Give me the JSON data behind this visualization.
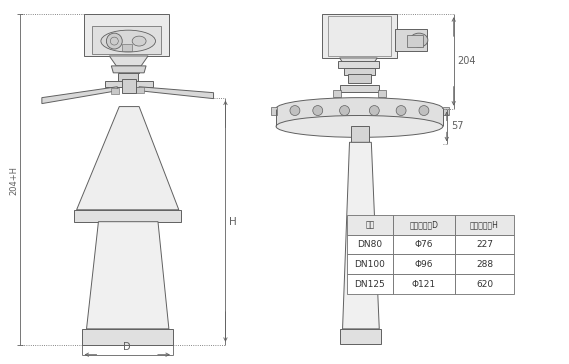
{
  "bg_color": "#ffffff",
  "lc": "#909090",
  "dc": "#606060",
  "table_data": [
    [
      "法兰",
      "喇叶口直径D",
      "喇叶口高度H"
    ],
    [
      "DN80",
      "Φ76",
      "227"
    ],
    [
      "DN100",
      "Φ96",
      "288"
    ],
    [
      "DN125",
      "Φ121",
      "620"
    ]
  ],
  "dim_204": "204",
  "dim_57": "57",
  "dim_H": "H",
  "dim_204H": "204+H",
  "dim_D": "D"
}
